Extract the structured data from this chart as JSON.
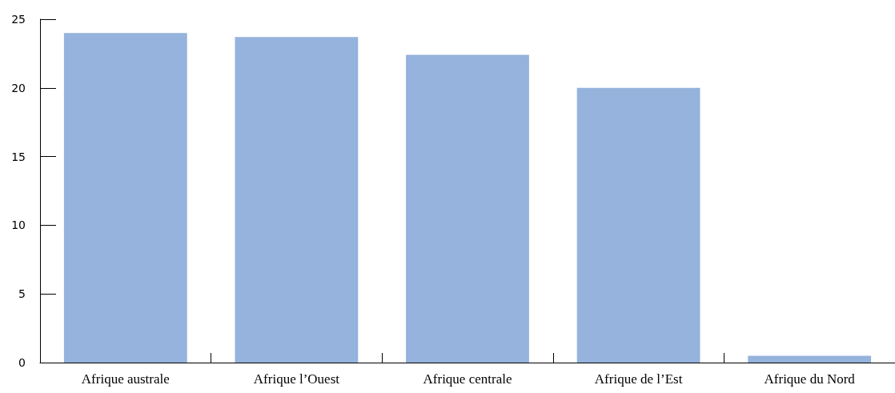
{
  "chart_data": {
    "type": "bar",
    "categories": [
      "Afrique australe",
      "Afrique l’Ouest",
      "Afrique centrale",
      "Afrique de l’Est",
      "Afrique du Nord"
    ],
    "values": [
      24.0,
      23.7,
      22.4,
      20.0,
      0.5
    ],
    "color": "#95b3dc",
    "ylim": [
      0,
      25
    ],
    "yticks": [
      0,
      5,
      10,
      15,
      20,
      25
    ],
    "grid": false
  }
}
